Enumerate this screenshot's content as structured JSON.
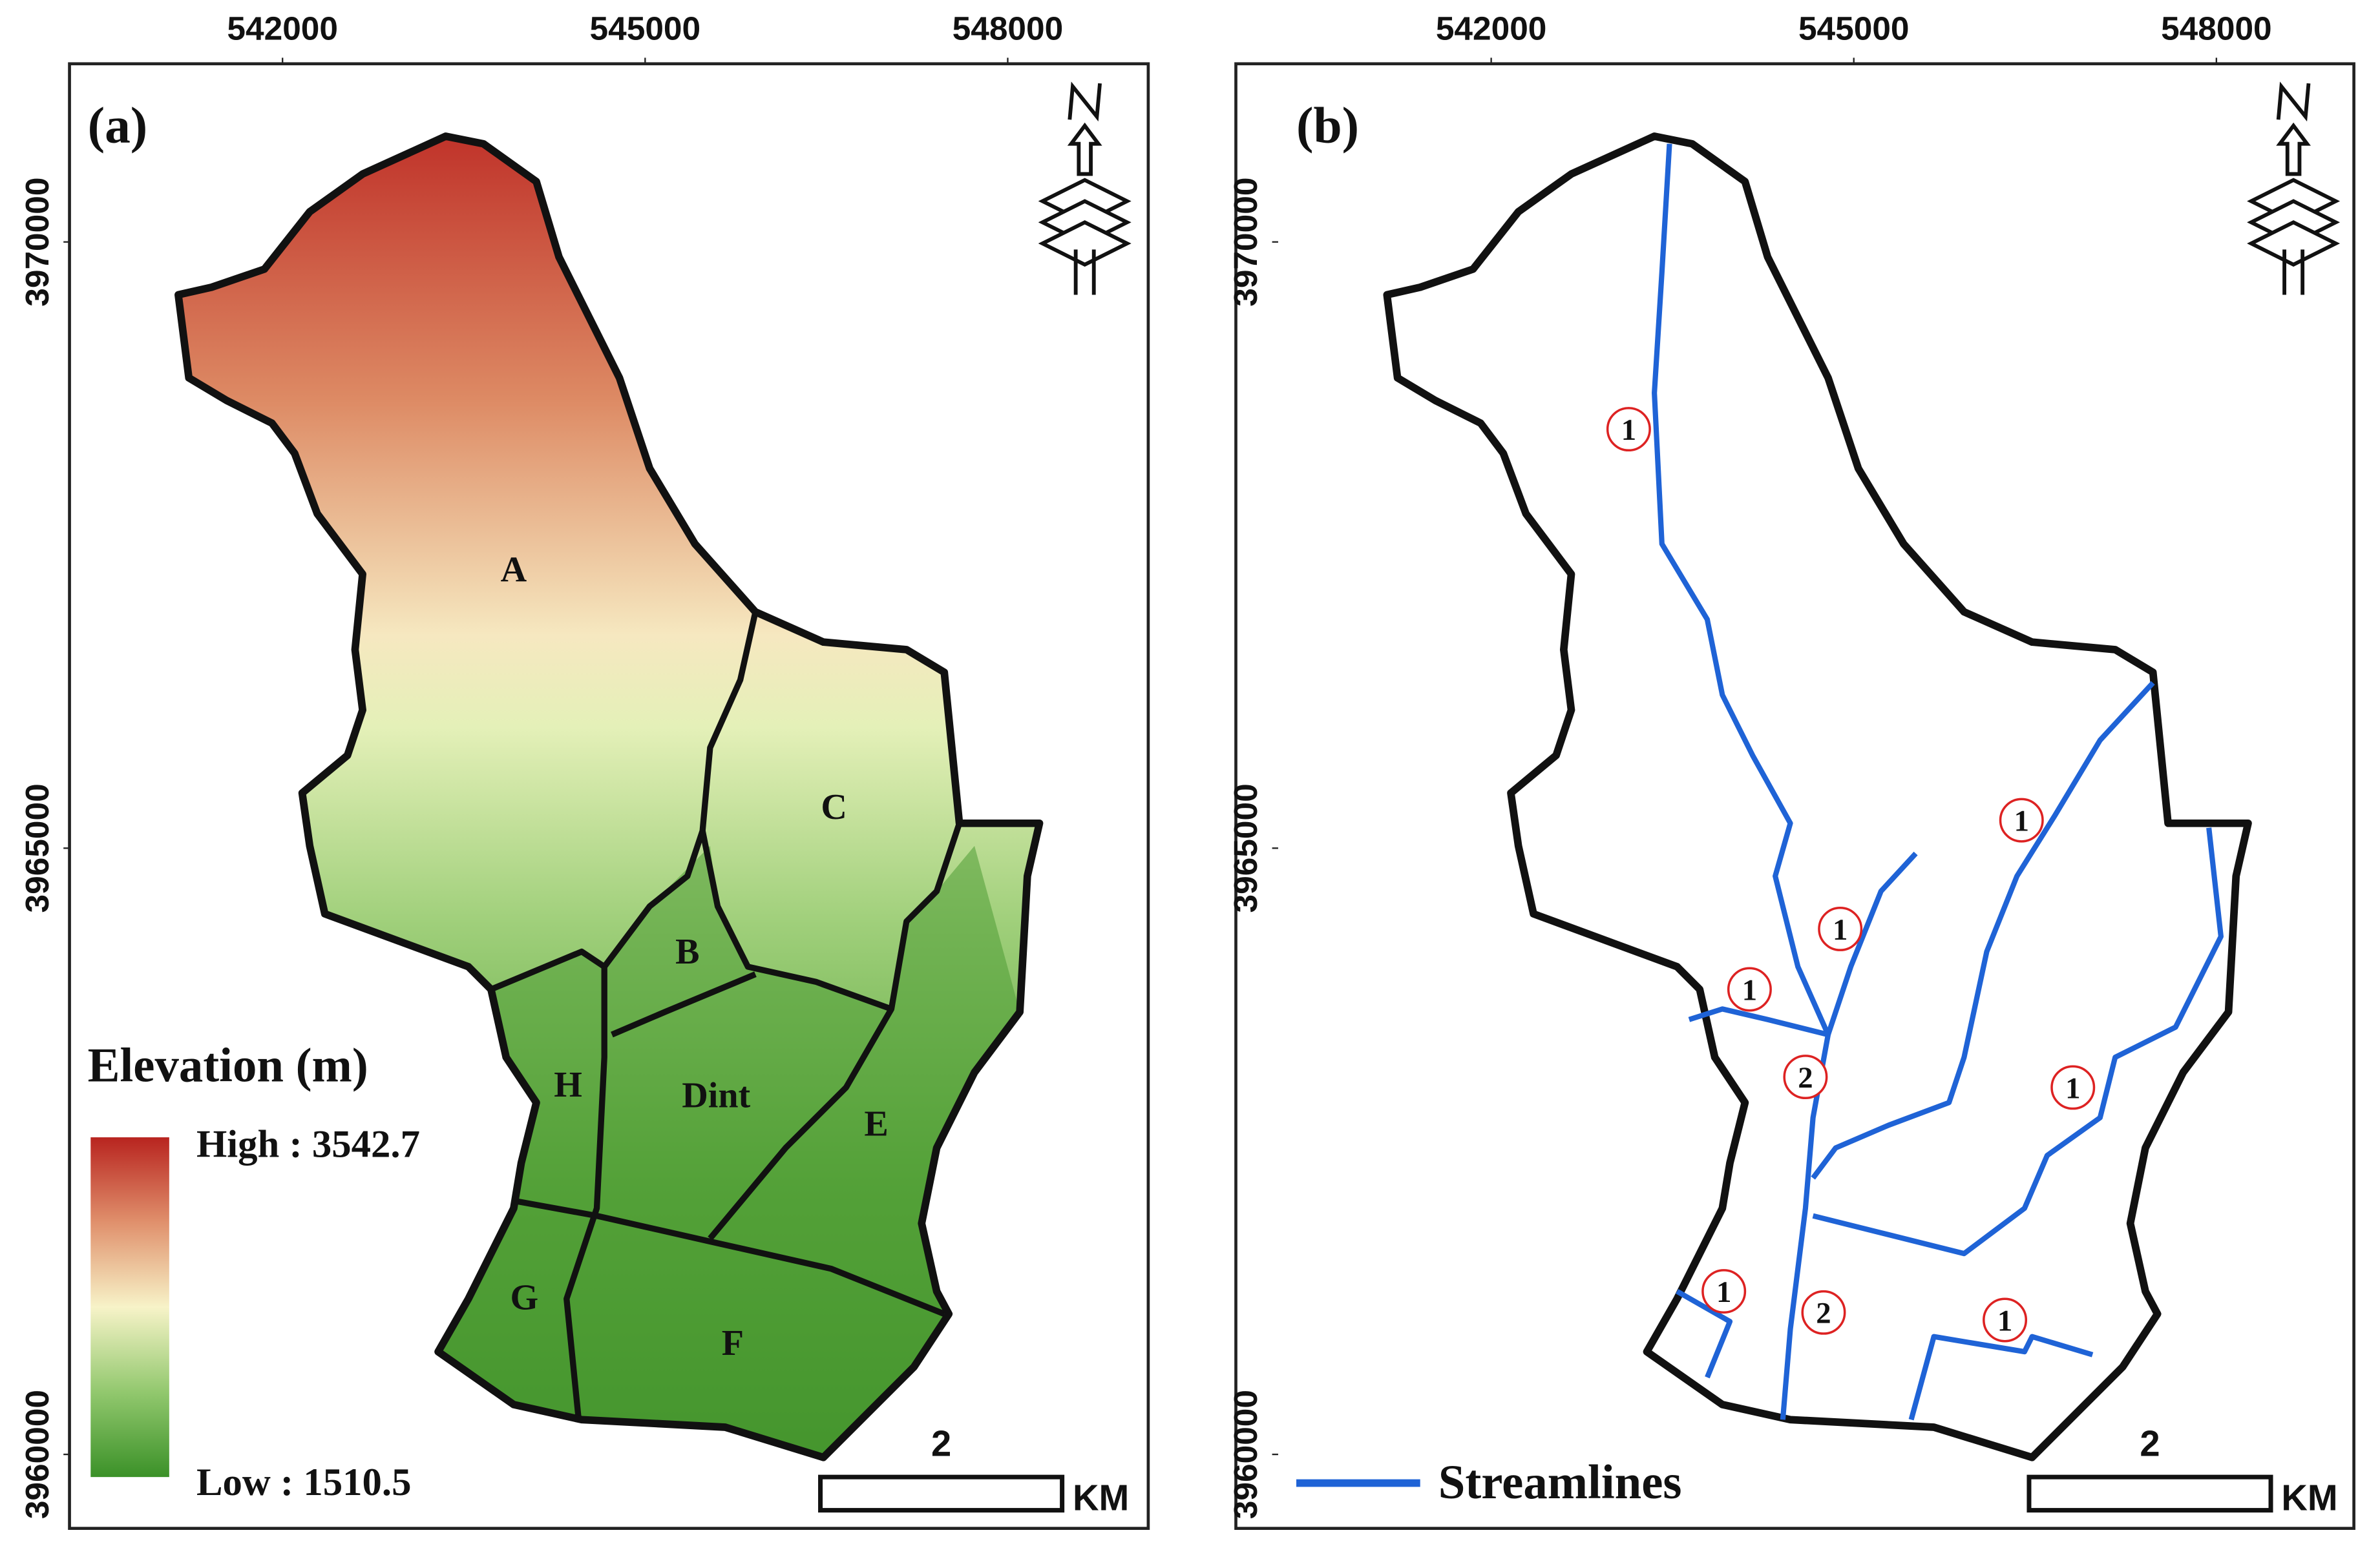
{
  "panels": [
    {
      "label": "(a)",
      "xticks": [
        "542000",
        "545000",
        "548000"
      ],
      "yticks": [
        "3970000",
        "3965000",
        "3960000"
      ],
      "subbasins": [
        "A",
        "B",
        "C",
        "Dint",
        "E",
        "F",
        "G",
        "H"
      ],
      "legend": {
        "title": "Elevation (m)",
        "high": "High : 3542.7",
        "low": "Low : 1510.5"
      },
      "scale": {
        "distance": "2",
        "unit": "KM"
      }
    },
    {
      "label": "(b)",
      "xticks": [
        "542000",
        "545000",
        "548000"
      ],
      "yticks": [
        "3970000",
        "3965000",
        "3960000"
      ],
      "stream_orders": [
        "1",
        "1",
        "1",
        "1",
        "2",
        "1",
        "1",
        "2",
        "1"
      ],
      "legend": {
        "title": "Streamlines"
      },
      "scale": {
        "distance": "2",
        "unit": "KM"
      }
    }
  ]
}
